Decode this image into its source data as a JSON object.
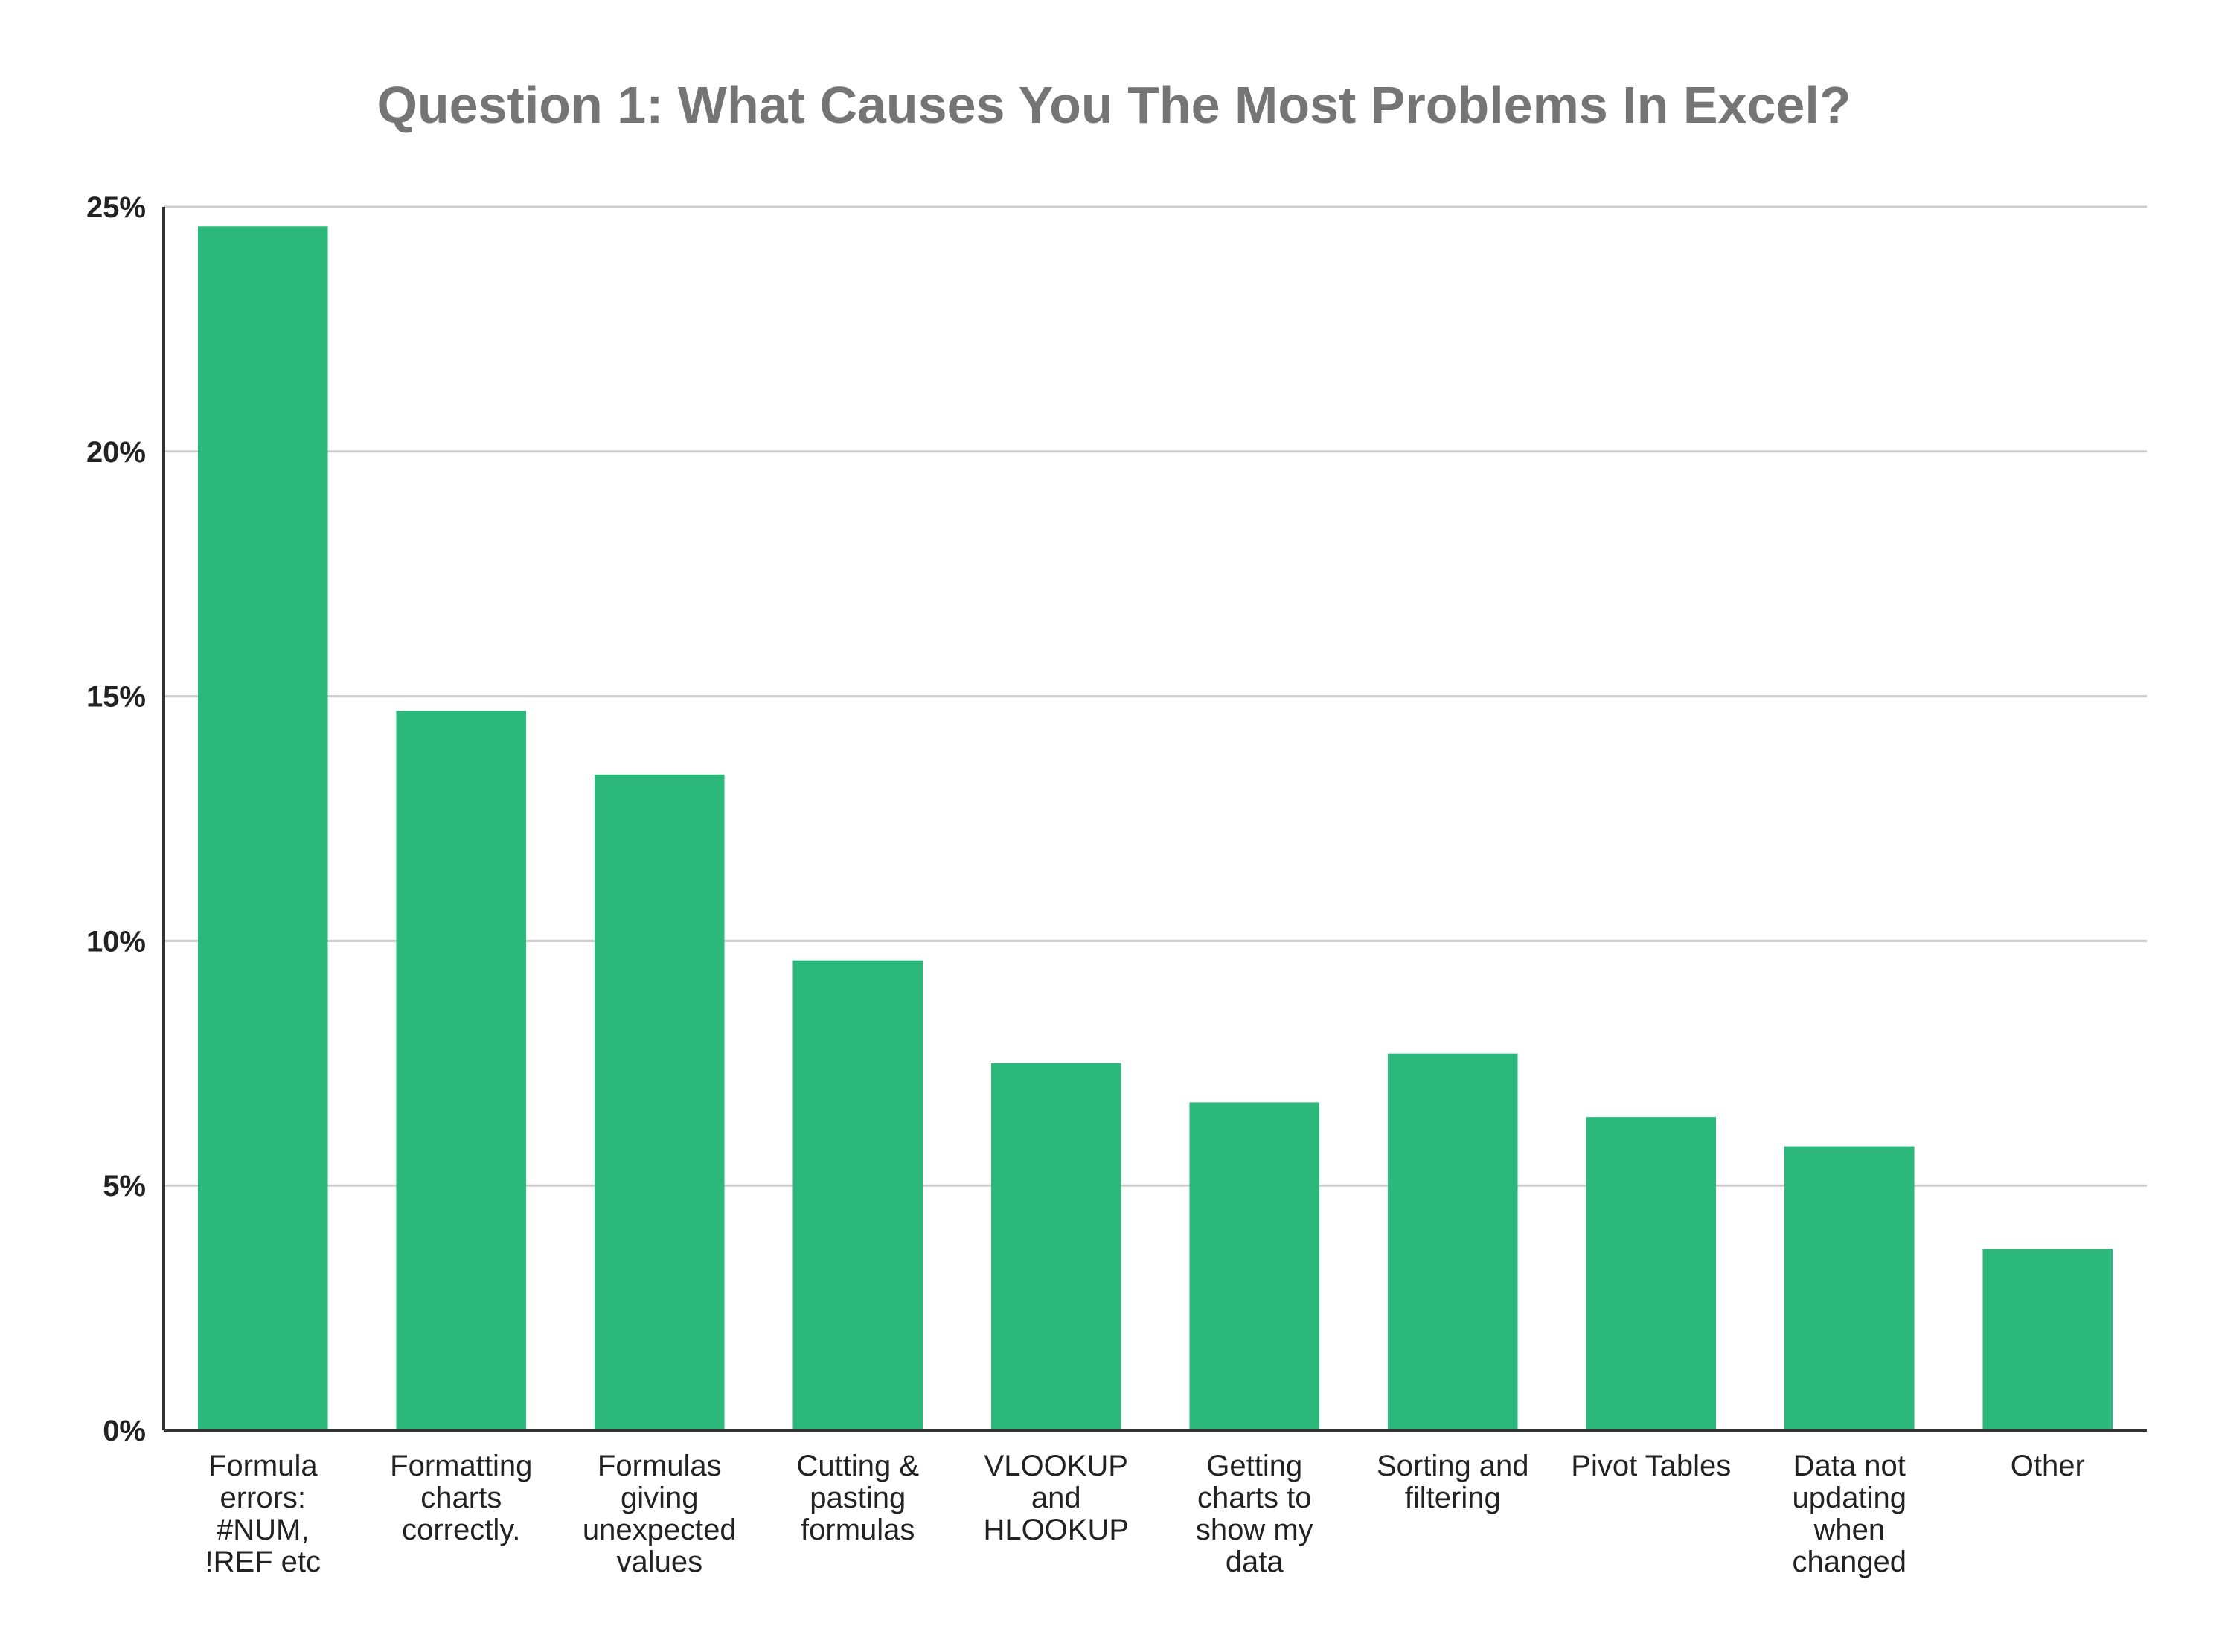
{
  "chart_data": {
    "type": "bar",
    "title": "Question 1: What Causes You The Most Problems In Excel?",
    "xlabel": "",
    "ylabel": "",
    "ylim": [
      0,
      25
    ],
    "y_ticks": [
      0,
      5,
      10,
      15,
      20,
      25
    ],
    "y_tick_labels": [
      "0%",
      "5%",
      "10%",
      "15%",
      "20%",
      "25%"
    ],
    "y_unit": "%",
    "grid": true,
    "legend": "none",
    "bar_color": "#2bb87a",
    "categories": [
      [
        "Formula",
        "errors:",
        "#NUM,",
        "!REF etc"
      ],
      [
        "Formatting",
        "charts",
        "correctly."
      ],
      [
        "Formulas",
        "giving",
        "unexpected",
        "values"
      ],
      [
        "Cutting &",
        "pasting",
        "formulas"
      ],
      [
        "VLOOKUP",
        "and",
        "HLOOKUP"
      ],
      [
        "Getting",
        "charts to",
        "show my",
        "data"
      ],
      [
        "Sorting and",
        "filtering"
      ],
      [
        "Pivot Tables"
      ],
      [
        "Data not",
        "updating",
        "when",
        "changed"
      ],
      [
        "Other"
      ]
    ],
    "values": [
      24.6,
      14.7,
      13.4,
      9.6,
      7.5,
      6.7,
      7.7,
      6.4,
      5.8,
      3.7
    ]
  }
}
